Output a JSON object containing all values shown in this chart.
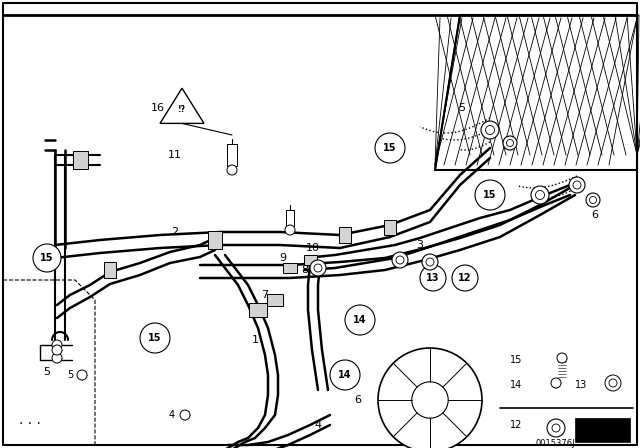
{
  "bg_color": "#ffffff",
  "line_color": "#000000",
  "part_number": "0015376J",
  "fig_width": 6.4,
  "fig_height": 4.48,
  "dpi": 100
}
